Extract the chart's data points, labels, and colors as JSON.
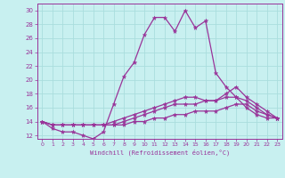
{
  "xlabel": "Windchill (Refroidissement éolien,°C)",
  "bg_color": "#c8f0f0",
  "line_color": "#993399",
  "grid_color": "#aadddd",
  "xlim": [
    -0.5,
    23.5
  ],
  "ylim": [
    11.5,
    31.0
  ],
  "yticks": [
    12,
    14,
    16,
    18,
    20,
    22,
    24,
    26,
    28,
    30
  ],
  "xticks": [
    0,
    1,
    2,
    3,
    4,
    5,
    6,
    7,
    8,
    9,
    10,
    11,
    12,
    13,
    14,
    15,
    16,
    17,
    18,
    19,
    20,
    21,
    22,
    23
  ],
  "series": [
    [
      14.0,
      13.0,
      12.5,
      12.5,
      12.0,
      11.5,
      12.5,
      16.5,
      20.5,
      22.5,
      26.5,
      29.0,
      29.0,
      27.0,
      30.0,
      27.5,
      28.5,
      21.0,
      19.0,
      17.5,
      16.0,
      15.0,
      14.5,
      14.5
    ],
    [
      14.0,
      13.5,
      13.5,
      13.5,
      13.5,
      13.5,
      13.5,
      14.0,
      14.5,
      15.0,
      15.5,
      16.0,
      16.5,
      17.0,
      17.5,
      17.5,
      17.0,
      17.0,
      18.0,
      19.0,
      17.5,
      16.5,
      15.5,
      14.5
    ],
    [
      14.0,
      13.5,
      13.5,
      13.5,
      13.5,
      13.5,
      13.5,
      13.5,
      14.0,
      14.5,
      15.0,
      15.5,
      16.0,
      16.5,
      16.5,
      16.5,
      17.0,
      17.0,
      17.5,
      17.5,
      17.0,
      16.0,
      15.0,
      14.5
    ],
    [
      14.0,
      13.5,
      13.5,
      13.5,
      13.5,
      13.5,
      13.5,
      13.5,
      13.5,
      14.0,
      14.0,
      14.5,
      14.5,
      15.0,
      15.0,
      15.5,
      15.5,
      15.5,
      16.0,
      16.5,
      16.5,
      15.5,
      15.0,
      14.5
    ]
  ]
}
